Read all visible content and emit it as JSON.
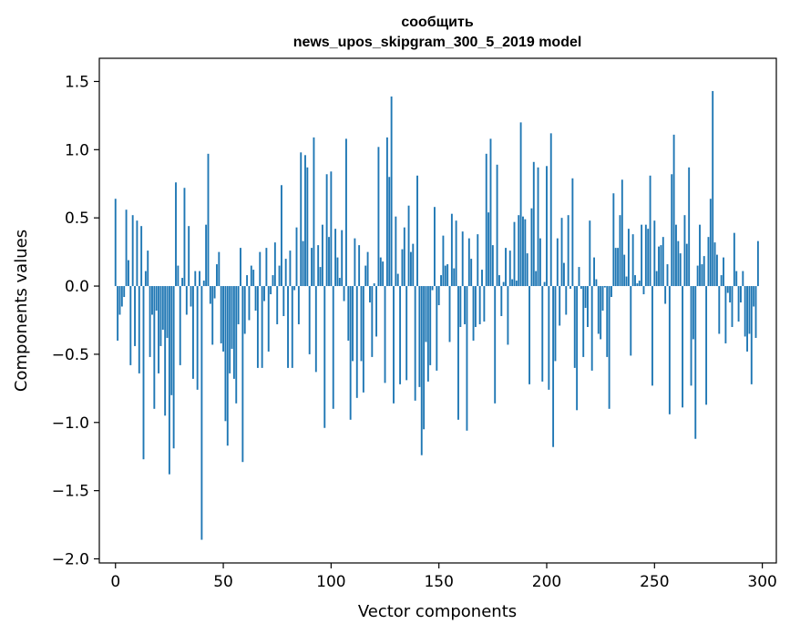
{
  "chart_data": {
    "type": "bar",
    "title": [
      "сообщить",
      "news_upos_skipgram_300_5_2019 model"
    ],
    "xlabel": "Vector components",
    "ylabel": "Components values",
    "xlim": [
      -7.5,
      306.5
    ],
    "ylim": [
      -2.03,
      1.67
    ],
    "xticks": [
      0,
      50,
      100,
      150,
      200,
      250,
      300
    ],
    "yticks": [
      -2.0,
      -1.5,
      -1.0,
      -0.5,
      0.0,
      0.5,
      1.0,
      1.5
    ],
    "ytick_labels": [
      "−2.0",
      "−1.5",
      "−1.0",
      "−0.5",
      "0.0",
      "0.5",
      "1.0",
      "1.5"
    ],
    "bar_color": "#1f77b4",
    "grid": false,
    "legend": "none",
    "x_start": 0,
    "values": [
      0.64,
      -0.4,
      -0.21,
      -0.15,
      -0.08,
      0.56,
      0.19,
      -0.58,
      0.52,
      -0.44,
      0.48,
      -0.64,
      0.44,
      -1.27,
      0.11,
      0.26,
      -0.52,
      -0.21,
      -0.9,
      -0.18,
      -0.64,
      -0.44,
      -0.32,
      -0.95,
      -0.38,
      -1.38,
      -0.8,
      -1.19,
      0.76,
      0.15,
      -0.58,
      0.06,
      0.72,
      -0.21,
      0.44,
      -0.15,
      -0.68,
      0.11,
      -0.76,
      0.11,
      -1.86,
      0.04,
      0.45,
      0.97,
      -0.13,
      -0.43,
      -0.09,
      0.16,
      0.25,
      -0.42,
      -0.48,
      -0.99,
      -1.17,
      -0.64,
      -0.46,
      -0.68,
      -0.86,
      -0.28,
      0.28,
      -1.29,
      -0.35,
      0.08,
      -0.25,
      0.15,
      0.12,
      -0.18,
      -0.6,
      0.25,
      -0.6,
      -0.11,
      0.28,
      -0.48,
      -0.06,
      0.08,
      0.32,
      -0.28,
      0.15,
      0.74,
      -0.22,
      0.2,
      -0.6,
      0.26,
      -0.6,
      -0.03,
      0.43,
      -0.28,
      0.98,
      0.33,
      0.96,
      0.87,
      -0.5,
      0.28,
      1.09,
      -0.63,
      0.3,
      0.14,
      0.45,
      -1.04,
      0.82,
      0.36,
      0.84,
      -0.9,
      0.42,
      0.21,
      0.06,
      0.41,
      -0.11,
      1.08,
      -0.4,
      -0.98,
      -0.55,
      0.35,
      -0.82,
      0.3,
      -0.55,
      -0.78,
      0.15,
      0.25,
      -0.12,
      -0.52,
      0.02,
      -0.37,
      1.02,
      0.21,
      0.18,
      -0.71,
      1.09,
      0.8,
      1.39,
      -0.86,
      0.51,
      0.09,
      -0.72,
      0.27,
      0.43,
      -0.69,
      0.59,
      0.25,
      0.31,
      -0.84,
      0.81,
      -0.74,
      -1.24,
      -1.05,
      -0.41,
      -0.7,
      -0.58,
      -0.03,
      0.58,
      -0.62,
      -0.14,
      0.08,
      0.37,
      0.15,
      0.16,
      -0.41,
      0.53,
      0.13,
      0.48,
      -0.98,
      -0.3,
      0.4,
      -0.28,
      -1.06,
      0.35,
      0.2,
      -0.4,
      -0.3,
      0.38,
      -0.28,
      0.12,
      -0.26,
      0.97,
      0.54,
      1.08,
      0.3,
      -0.86,
      0.89,
      0.08,
      -0.22,
      0.03,
      0.28,
      -0.43,
      0.26,
      0.05,
      0.47,
      0.04,
      0.52,
      1.2,
      0.51,
      0.49,
      0.24,
      -0.72,
      0.57,
      0.91,
      0.11,
      0.87,
      0.35,
      -0.7,
      0.03,
      0.88,
      -0.76,
      1.12,
      -1.18,
      -0.55,
      0.35,
      -0.29,
      0.5,
      0.17,
      -0.21,
      0.52,
      -0.02,
      0.79,
      -0.6,
      -0.91,
      0.14,
      -0.02,
      -0.52,
      -0.16,
      -0.3,
      0.48,
      -0.62,
      0.21,
      0.05,
      -0.35,
      -0.39,
      -0.18,
      -0.01,
      -0.52,
      -0.9,
      -0.08,
      0.68,
      0.28,
      0.28,
      0.52,
      0.78,
      0.23,
      0.07,
      0.42,
      -0.51,
      0.38,
      0.08,
      0.02,
      0.04,
      0.45,
      -0.06,
      0.45,
      0.42,
      0.81,
      -0.73,
      0.48,
      0.11,
      0.29,
      0.3,
      0.36,
      -0.13,
      0.16,
      -0.94,
      0.82,
      1.11,
      0.45,
      0.33,
      0.24,
      -0.89,
      0.52,
      0.31,
      0.87,
      -0.73,
      -0.39,
      -1.12,
      0.15,
      0.45,
      0.16,
      0.22,
      -0.87,
      0.36,
      0.64,
      1.43,
      0.32,
      0.23,
      -0.35,
      0.08,
      0.21,
      -0.42,
      -0.05,
      -0.12,
      -0.3,
      0.39,
      0.11,
      -0.26,
      -0.12,
      0.11,
      -0.37,
      -0.48,
      -0.35,
      -0.72,
      -0.15,
      -0.38,
      0.33
    ]
  }
}
